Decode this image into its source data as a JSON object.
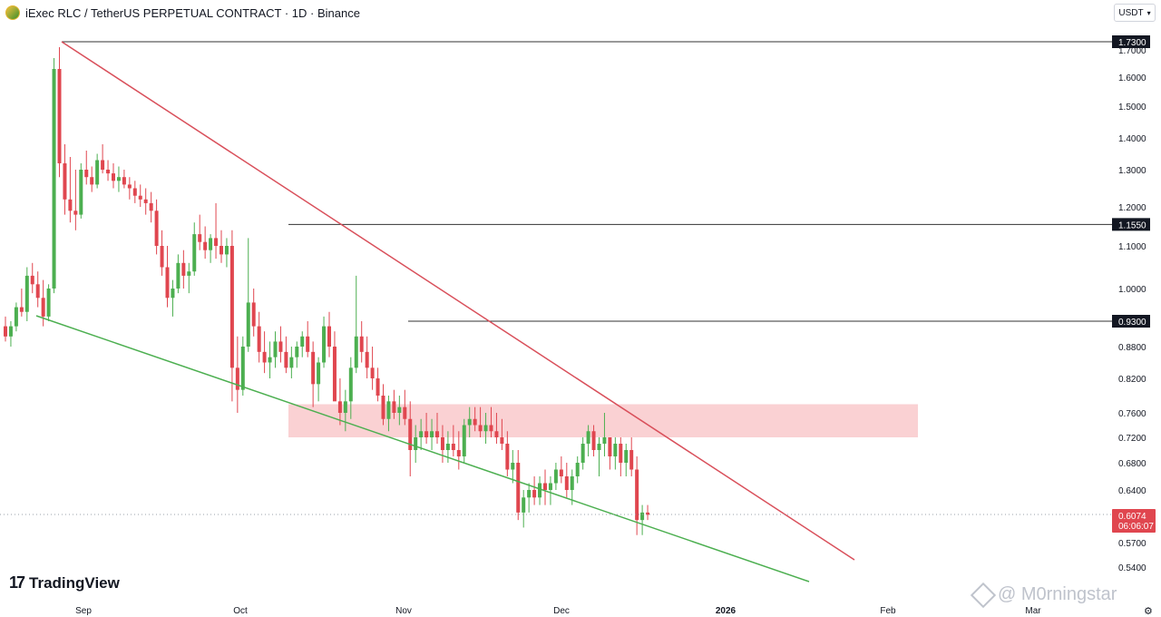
{
  "header": {
    "title": "iExec RLC / TetherUS PERPETUAL CONTRACT · 1D · Binance",
    "currency": "USDT",
    "logo_icon": "coin-logo-icon"
  },
  "branding": {
    "tv_logo_text": "TradingView",
    "tv_logo_mark": "17",
    "watermark_text": "@ M0rningstar"
  },
  "chart_data": {
    "type": "candlestick",
    "title": "iExec RLC / TetherUS PERPETUAL CONTRACT · 1D · Binance",
    "y_axis_ticks": [
      "1.7000",
      "1.6000",
      "1.5000",
      "1.4000",
      "1.3000",
      "1.2000",
      "1.1000",
      "1.0000",
      "0.8800",
      "0.8200",
      "0.7600",
      "0.7200",
      "0.6800",
      "0.6400",
      "0.5700",
      "0.5400"
    ],
    "x_axis_ticks": [
      "Sep",
      "Oct",
      "Nov",
      "Dec",
      "2026",
      "Feb",
      "Mar"
    ],
    "horizontal_levels": [
      {
        "label": "1.7300",
        "value": 1.73
      },
      {
        "label": "1.1550",
        "value": 1.155
      },
      {
        "label": "0.9300",
        "value": 0.93
      }
    ],
    "current_price": "0.6074",
    "countdown": "06:06:07",
    "zone": {
      "low": 0.72,
      "high": 0.775
    },
    "colors": {
      "up": "#26a69a",
      "up_candle": "#4caf50",
      "down": "#e0464f",
      "resistance": "#d9505b",
      "support": "#4caf50",
      "zone": "#f9c9cb",
      "level": "#333333"
    },
    "candles": [
      [
        0.92,
        0.94,
        0.89,
        0.9
      ],
      [
        0.9,
        0.93,
        0.88,
        0.92
      ],
      [
        0.92,
        0.97,
        0.91,
        0.96
      ],
      [
        0.96,
        1.0,
        0.94,
        0.95
      ],
      [
        0.95,
        1.05,
        0.93,
        1.03
      ],
      [
        1.03,
        1.06,
        0.99,
        1.01
      ],
      [
        1.01,
        1.04,
        0.96,
        0.98
      ],
      [
        0.98,
        1.02,
        0.92,
        0.94
      ],
      [
        0.94,
        1.01,
        0.93,
        1.0
      ],
      [
        1.0,
        1.67,
        0.99,
        1.63
      ],
      [
        1.63,
        1.71,
        1.28,
        1.32
      ],
      [
        1.32,
        1.38,
        1.18,
        1.22
      ],
      [
        1.22,
        1.34,
        1.16,
        1.19
      ],
      [
        1.19,
        1.3,
        1.14,
        1.18
      ],
      [
        1.18,
        1.32,
        1.17,
        1.3
      ],
      [
        1.3,
        1.36,
        1.26,
        1.28
      ],
      [
        1.28,
        1.31,
        1.24,
        1.26
      ],
      [
        1.26,
        1.35,
        1.25,
        1.33
      ],
      [
        1.33,
        1.38,
        1.29,
        1.3
      ],
      [
        1.3,
        1.33,
        1.27,
        1.29
      ],
      [
        1.29,
        1.32,
        1.25,
        1.27
      ],
      [
        1.27,
        1.31,
        1.24,
        1.28
      ],
      [
        1.28,
        1.3,
        1.25,
        1.26
      ],
      [
        1.26,
        1.28,
        1.22,
        1.25
      ],
      [
        1.25,
        1.27,
        1.21,
        1.23
      ],
      [
        1.23,
        1.26,
        1.2,
        1.22
      ],
      [
        1.22,
        1.25,
        1.18,
        1.21
      ],
      [
        1.21,
        1.24,
        1.16,
        1.19
      ],
      [
        1.19,
        1.22,
        1.08,
        1.1
      ],
      [
        1.1,
        1.14,
        1.03,
        1.05
      ],
      [
        1.05,
        1.1,
        0.96,
        0.98
      ],
      [
        0.98,
        1.02,
        0.94,
        1.0
      ],
      [
        1.0,
        1.08,
        0.99,
        1.06
      ],
      [
        1.06,
        1.09,
        1.0,
        1.03
      ],
      [
        1.03,
        1.06,
        0.99,
        1.04
      ],
      [
        1.04,
        1.16,
        1.03,
        1.13
      ],
      [
        1.13,
        1.18,
        1.09,
        1.11
      ],
      [
        1.11,
        1.15,
        1.07,
        1.09
      ],
      [
        1.09,
        1.13,
        1.06,
        1.12
      ],
      [
        1.12,
        1.21,
        1.07,
        1.1
      ],
      [
        1.1,
        1.14,
        1.06,
        1.08
      ],
      [
        1.08,
        1.12,
        1.05,
        1.1
      ],
      [
        1.1,
        1.14,
        0.78,
        0.84
      ],
      [
        0.84,
        0.9,
        0.76,
        0.8
      ],
      [
        0.8,
        0.9,
        0.79,
        0.88
      ],
      [
        0.88,
        1.12,
        0.87,
        0.97
      ],
      [
        0.97,
        1.0,
        0.9,
        0.92
      ],
      [
        0.92,
        0.95,
        0.85,
        0.87
      ],
      [
        0.87,
        0.91,
        0.83,
        0.85
      ],
      [
        0.85,
        0.89,
        0.82,
        0.86
      ],
      [
        0.86,
        0.91,
        0.84,
        0.89
      ],
      [
        0.89,
        0.92,
        0.85,
        0.87
      ],
      [
        0.87,
        0.9,
        0.83,
        0.84
      ],
      [
        0.84,
        0.88,
        0.82,
        0.86
      ],
      [
        0.86,
        0.89,
        0.84,
        0.88
      ],
      [
        0.88,
        0.91,
        0.86,
        0.9
      ],
      [
        0.9,
        0.93,
        0.86,
        0.87
      ],
      [
        0.87,
        0.89,
        0.77,
        0.81
      ],
      [
        0.81,
        0.86,
        0.78,
        0.85
      ],
      [
        0.85,
        0.94,
        0.84,
        0.92
      ],
      [
        0.92,
        0.95,
        0.86,
        0.88
      ],
      [
        0.88,
        0.91,
        0.79,
        0.78
      ],
      [
        0.78,
        0.82,
        0.74,
        0.76
      ],
      [
        0.76,
        0.8,
        0.73,
        0.78
      ],
      [
        0.78,
        0.86,
        0.75,
        0.84
      ],
      [
        0.84,
        1.03,
        0.83,
        0.9
      ],
      [
        0.9,
        0.93,
        0.85,
        0.87
      ],
      [
        0.87,
        0.9,
        0.82,
        0.84
      ],
      [
        0.84,
        0.88,
        0.8,
        0.82
      ],
      [
        0.82,
        0.84,
        0.78,
        0.79
      ],
      [
        0.79,
        0.81,
        0.74,
        0.75
      ],
      [
        0.75,
        0.79,
        0.73,
        0.78
      ],
      [
        0.78,
        0.8,
        0.75,
        0.76
      ],
      [
        0.76,
        0.79,
        0.74,
        0.77
      ],
      [
        0.77,
        0.8,
        0.74,
        0.75
      ],
      [
        0.75,
        0.78,
        0.66,
        0.7
      ],
      [
        0.7,
        0.74,
        0.68,
        0.72
      ],
      [
        0.72,
        0.75,
        0.7,
        0.73
      ],
      [
        0.73,
        0.76,
        0.71,
        0.72
      ],
      [
        0.72,
        0.75,
        0.7,
        0.73
      ],
      [
        0.73,
        0.76,
        0.71,
        0.72
      ],
      [
        0.72,
        0.74,
        0.68,
        0.7
      ],
      [
        0.7,
        0.73,
        0.68,
        0.71
      ],
      [
        0.71,
        0.74,
        0.69,
        0.7
      ],
      [
        0.7,
        0.73,
        0.67,
        0.69
      ],
      [
        0.69,
        0.75,
        0.68,
        0.74
      ],
      [
        0.74,
        0.77,
        0.72,
        0.75
      ],
      [
        0.75,
        0.77,
        0.73,
        0.74
      ],
      [
        0.74,
        0.77,
        0.72,
        0.73
      ],
      [
        0.73,
        0.76,
        0.71,
        0.74
      ],
      [
        0.74,
        0.77,
        0.72,
        0.73
      ],
      [
        0.73,
        0.76,
        0.71,
        0.72
      ],
      [
        0.72,
        0.75,
        0.7,
        0.71
      ],
      [
        0.71,
        0.73,
        0.66,
        0.67
      ],
      [
        0.67,
        0.7,
        0.65,
        0.68
      ],
      [
        0.68,
        0.7,
        0.6,
        0.61
      ],
      [
        0.61,
        0.64,
        0.59,
        0.63
      ],
      [
        0.63,
        0.65,
        0.61,
        0.64
      ],
      [
        0.64,
        0.66,
        0.62,
        0.63
      ],
      [
        0.63,
        0.66,
        0.62,
        0.65
      ],
      [
        0.65,
        0.67,
        0.62,
        0.64
      ],
      [
        0.64,
        0.66,
        0.62,
        0.65
      ],
      [
        0.65,
        0.68,
        0.64,
        0.67
      ],
      [
        0.67,
        0.69,
        0.65,
        0.66
      ],
      [
        0.66,
        0.68,
        0.63,
        0.64
      ],
      [
        0.64,
        0.67,
        0.62,
        0.66
      ],
      [
        0.66,
        0.69,
        0.65,
        0.68
      ],
      [
        0.68,
        0.72,
        0.67,
        0.71
      ],
      [
        0.71,
        0.74,
        0.69,
        0.73
      ],
      [
        0.73,
        0.74,
        0.69,
        0.7
      ],
      [
        0.7,
        0.72,
        0.66,
        0.71
      ],
      [
        0.71,
        0.76,
        0.69,
        0.72
      ],
      [
        0.72,
        0.72,
        0.67,
        0.69
      ],
      [
        0.69,
        0.72,
        0.67,
        0.71
      ],
      [
        0.71,
        0.72,
        0.66,
        0.68
      ],
      [
        0.68,
        0.71,
        0.66,
        0.7
      ],
      [
        0.7,
        0.72,
        0.66,
        0.67
      ],
      [
        0.67,
        0.69,
        0.58,
        0.6
      ],
      [
        0.6,
        0.62,
        0.58,
        0.61
      ],
      [
        0.61,
        0.62,
        0.6,
        0.607
      ]
    ]
  }
}
